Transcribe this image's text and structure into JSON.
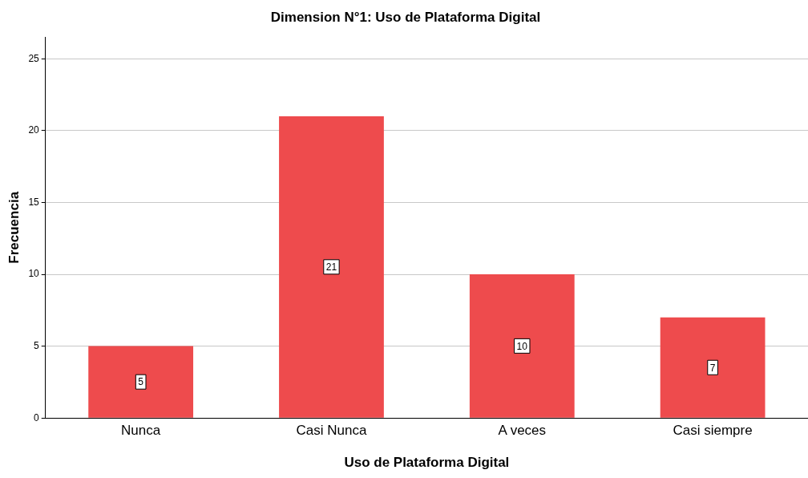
{
  "chart_data": {
    "type": "bar",
    "title": "Dimension N°1: Uso de Plataforma Digital",
    "xlabel": "Uso de Plataforma Digital",
    "ylabel": "Frecuencia",
    "categories": [
      "Nunca",
      "Casi Nunca",
      "A veces",
      "Casi siempre"
    ],
    "values": [
      5,
      21,
      10,
      7
    ],
    "color": "#ee4b4d",
    "ylim": [
      0,
      26.5
    ],
    "yticks": [
      0,
      5,
      10,
      15,
      20,
      25
    ],
    "grid": "y",
    "data_labels": true,
    "legend": false
  }
}
